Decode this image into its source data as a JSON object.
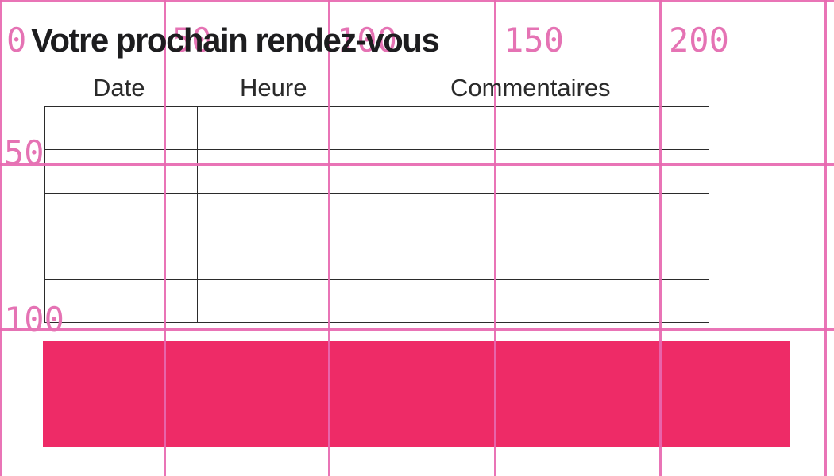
{
  "page": {
    "background_color": "#ffffff"
  },
  "document": {
    "title": "Votre prochain rendez-vous",
    "title_color": "#1d1d1f",
    "table": {
      "headers": [
        "Date",
        "Heure",
        "Commentaires"
      ],
      "header_color": "#2a2a2a",
      "border_color": "#2b2b2b",
      "rows": [
        [
          "",
          "",
          ""
        ],
        [
          "",
          "",
          ""
        ],
        [
          "",
          "",
          ""
        ],
        [
          "",
          "",
          ""
        ],
        [
          "",
          "",
          ""
        ]
      ]
    },
    "highlight_bar": {
      "color": "#ee2b67"
    }
  },
  "grid_overlay": {
    "line_color": "#e768b0",
    "label_color": "#e573b4",
    "x_tick_labels": [
      "0",
      "50",
      "100",
      "150",
      "200"
    ],
    "y_tick_labels": [
      "50",
      "100"
    ]
  }
}
